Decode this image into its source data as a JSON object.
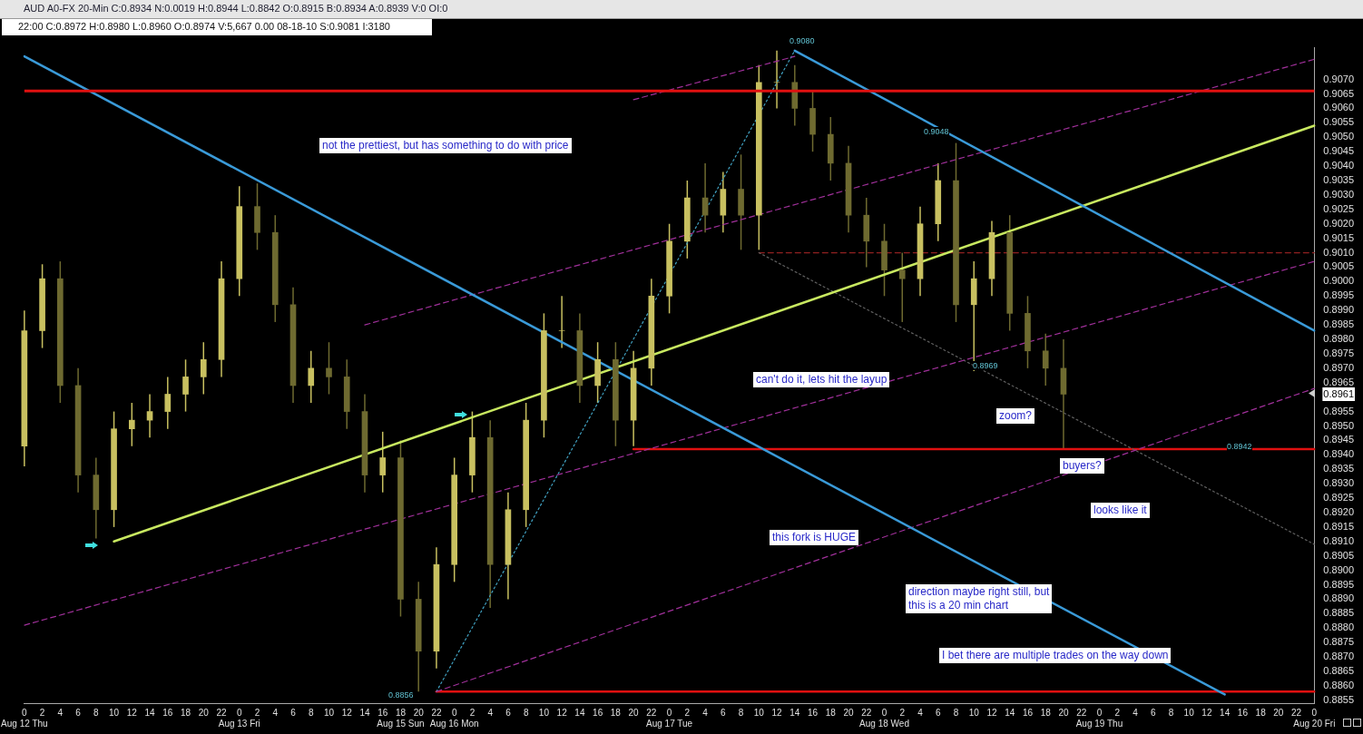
{
  "chart_data": {
    "type": "candlestick",
    "title": "AUD A0-FX 20-Min C:0.8934 N:0.0019 H:0.8944 L:0.8842 O:0.8915 B:0.8934 A:0.8939 V:0 OI:0",
    "subtitle": "22:00 C:0.8972 H:0.8980 L:0.8960 O:0.8974 V:5,667 0.00 08-18-10 S:0.9081 I:3180",
    "colors": [
      "#c8c060",
      "#c8c060",
      "#6e6a30",
      "#6e6a30",
      "#6e6a30",
      "#c8c060",
      "#c8c060",
      "#c8c060",
      "#c8c060",
      "#c8c060",
      "#c8c060",
      "#c8c060",
      "#c8c060",
      "#6e6a30",
      "#6e6a30",
      "#6e6a30",
      "#c8c060",
      "#6e6a30",
      "#6e6a30",
      "#6e6a30",
      "#c8c060",
      "#6e6a30",
      "#6e6a30",
      "#c8c060",
      "#c8c060",
      "#c8c060",
      "#6e6a30",
      "#c8c060",
      "#c8c060",
      "#c8c060",
      "#c8c060",
      "#6e6a30",
      "#c8c060",
      "#6e6a30",
      "#c8c060",
      "#c8c060",
      "#c8c060",
      "#c8c060",
      "#6e6a30",
      "#c8c060",
      "#6e6a30",
      "#c8c060",
      "#c8c060",
      "#6e6a30",
      "#6e6a30",
      "#6e6a30",
      "#6e6a30",
      "#6e6a30",
      "#6e6a30",
      "#6e6a30",
      "#c8c060",
      "#c8c060",
      "#6e6a30",
      "#c8c060",
      "#c8c060",
      "#6e6a30",
      "#6e6a30",
      "#6e6a30",
      "#6e6a30",
      null,
      null,
      null,
      null,
      null,
      null,
      null,
      null,
      null,
      null,
      null,
      null,
      null,
      null
    ],
    "categories": [
      "0\nAug 12 Thu",
      "2",
      "4",
      "6",
      "8",
      "10",
      "12",
      "14",
      "16",
      "18",
      "20",
      "22",
      "0\nAug 13 Fri",
      "2",
      "4",
      "6",
      "8",
      "10",
      "12",
      "14",
      "16",
      "18\nAug 15 Sun",
      "20",
      "22",
      "0\nAug 16 Mon",
      "2",
      "4",
      "6",
      "8",
      "10",
      "12",
      "14",
      "16",
      "18",
      "20",
      "22",
      "0\nAug 17 Tue",
      "2",
      "4",
      "6",
      "8",
      "10",
      "12",
      "14",
      "16",
      "18",
      "20",
      "22",
      "0\nAug 18 Wed",
      "2",
      "4",
      "6",
      "8",
      "10",
      "12",
      "14",
      "16",
      "18",
      "20",
      "22",
      "0\nAug 19 Thu",
      "2",
      "4",
      "6",
      "8",
      "10",
      "12",
      "14",
      "16",
      "18",
      "20",
      "22",
      "0\nAug 20 Fri"
    ],
    "ohlc": [
      [
        0.8943,
        0.899,
        0.8936,
        0.8983
      ],
      [
        0.8983,
        0.9006,
        0.8977,
        0.9001
      ],
      [
        0.9001,
        0.9007,
        0.8958,
        0.8964
      ],
      [
        0.8964,
        0.897,
        0.8927,
        0.8933
      ],
      [
        0.8933,
        0.8939,
        0.8911,
        0.8921
      ],
      [
        0.8921,
        0.8955,
        0.8915,
        0.8949
      ],
      [
        0.8949,
        0.8958,
        0.8943,
        0.8952
      ],
      [
        0.8952,
        0.8961,
        0.8946,
        0.8955
      ],
      [
        0.8955,
        0.8967,
        0.8949,
        0.8961
      ],
      [
        0.8961,
        0.8973,
        0.8955,
        0.8967
      ],
      [
        0.8967,
        0.8979,
        0.8961,
        0.8973
      ],
      [
        0.8973,
        0.9007,
        0.8967,
        0.9001
      ],
      [
        0.9001,
        0.9033,
        0.8995,
        0.9026
      ],
      [
        0.9026,
        0.9034,
        0.9011,
        0.9017
      ],
      [
        0.9017,
        0.9023,
        0.8986,
        0.8992
      ],
      [
        0.8992,
        0.8998,
        0.8958,
        0.8964
      ],
      [
        0.8964,
        0.8976,
        0.8958,
        0.897
      ],
      [
        0.897,
        0.8979,
        0.8961,
        0.8967
      ],
      [
        0.8967,
        0.8973,
        0.8949,
        0.8955
      ],
      [
        0.8955,
        0.8961,
        0.8927,
        0.8933
      ],
      [
        0.8933,
        0.8948,
        0.8927,
        0.8939
      ],
      [
        0.8939,
        0.8945,
        0.8884,
        0.889
      ],
      [
        0.889,
        0.8896,
        0.8858,
        0.8872
      ],
      [
        0.8872,
        0.8908,
        0.8866,
        0.8902
      ],
      [
        0.8902,
        0.8939,
        0.8896,
        0.8933
      ],
      [
        0.8933,
        0.8955,
        0.8927,
        0.8946
      ],
      [
        0.8946,
        0.8952,
        0.8887,
        0.8902
      ],
      [
        0.8902,
        0.8927,
        0.889,
        0.8921
      ],
      [
        0.8921,
        0.8958,
        0.8915,
        0.8952
      ],
      [
        0.8952,
        0.8989,
        0.8946,
        0.8983
      ],
      [
        0.8983,
        0.8995,
        0.8977,
        0.8983
      ],
      [
        0.8983,
        0.8989,
        0.8958,
        0.8964
      ],
      [
        0.8964,
        0.8979,
        0.8958,
        0.8973
      ],
      [
        0.8973,
        0.8979,
        0.8943,
        0.8952
      ],
      [
        0.8952,
        0.8976,
        0.8943,
        0.897
      ],
      [
        0.897,
        0.9001,
        0.8964,
        0.8995
      ],
      [
        0.8995,
        0.902,
        0.8989,
        0.9014
      ],
      [
        0.9014,
        0.9035,
        0.9008,
        0.9029
      ],
      [
        0.9029,
        0.9041,
        0.9017,
        0.9023
      ],
      [
        0.9023,
        0.9038,
        0.9017,
        0.9032
      ],
      [
        0.9032,
        0.9044,
        0.9011,
        0.9023
      ],
      [
        0.9023,
        0.9075,
        0.9011,
        0.9069
      ],
      [
        0.9069,
        0.908,
        0.906,
        0.9069
      ],
      [
        0.9069,
        0.9075,
        0.9054,
        0.906
      ],
      [
        0.906,
        0.9066,
        0.9045,
        0.9051
      ],
      [
        0.9051,
        0.9057,
        0.9035,
        0.9041
      ],
      [
        0.9041,
        0.9047,
        0.9017,
        0.9023
      ],
      [
        0.9023,
        0.9029,
        0.9005,
        0.9014
      ],
      [
        0.9014,
        0.902,
        0.8995,
        0.9004
      ],
      [
        0.9004,
        0.901,
        0.8986,
        0.9001
      ],
      [
        0.9001,
        0.9026,
        0.8995,
        0.902
      ],
      [
        0.902,
        0.9041,
        0.9014,
        0.9035
      ],
      [
        0.9035,
        0.9048,
        0.8986,
        0.8992
      ],
      [
        0.8992,
        0.9007,
        0.8969,
        0.9001
      ],
      [
        0.9001,
        0.9021,
        0.8995,
        0.9017
      ],
      [
        0.9017,
        0.9023,
        0.8983,
        0.8989
      ],
      [
        0.8989,
        0.8995,
        0.897,
        0.8976
      ],
      [
        0.8976,
        0.8982,
        0.8964,
        0.897
      ],
      [
        0.897,
        0.898,
        0.8942,
        0.8961
      ],
      null,
      null,
      null,
      null,
      null,
      null,
      null,
      null,
      null,
      null,
      null,
      null,
      null,
      null
    ],
    "series": [
      {
        "type": "line",
        "color": "#3a9ad8",
        "line_style": "solid",
        "values": [
          0.9078,
          null,
          null,
          null,
          null,
          null,
          null,
          null,
          null,
          null,
          null,
          null,
          null,
          null,
          null,
          null,
          null,
          null,
          null,
          null,
          null,
          null,
          null,
          null,
          null,
          null,
          null,
          null,
          null,
          null,
          null,
          null,
          null,
          null,
          null,
          null,
          null,
          null,
          null,
          null,
          null,
          null,
          null,
          null,
          null,
          null,
          null,
          null,
          null,
          null,
          null,
          null,
          null,
          null,
          null,
          null,
          null,
          null,
          null,
          null,
          null,
          null,
          null,
          null,
          null,
          null,
          null,
          0.8857,
          null,
          null,
          null,
          null,
          null
        ]
      },
      {
        "type": "line",
        "color": "#3a9ad8",
        "line_style": "solid",
        "values": [
          null,
          null,
          null,
          null,
          null,
          null,
          null,
          null,
          null,
          null,
          null,
          null,
          null,
          null,
          null,
          null,
          null,
          null,
          null,
          null,
          null,
          null,
          null,
          null,
          null,
          null,
          null,
          null,
          null,
          null,
          null,
          null,
          null,
          null,
          null,
          null,
          null,
          null,
          null,
          null,
          null,
          null,
          null,
          0.908,
          null,
          null,
          null,
          null,
          null,
          null,
          null,
          null,
          null,
          null,
          null,
          null,
          null,
          null,
          null,
          null,
          null,
          null,
          null,
          null,
          null,
          null,
          null,
          null,
          null,
          null,
          null,
          null,
          0.8983
        ]
      },
      {
        "type": "line",
        "color": "#c8e860",
        "line_style": "solid",
        "values": [
          null,
          null,
          null,
          null,
          null,
          0.891,
          null,
          null,
          null,
          null,
          null,
          null,
          null,
          null,
          null,
          null,
          null,
          null,
          null,
          null,
          null,
          null,
          null,
          null,
          null,
          null,
          null,
          null,
          null,
          null,
          null,
          null,
          null,
          null,
          null,
          null,
          null,
          null,
          null,
          null,
          null,
          null,
          null,
          null,
          null,
          null,
          null,
          null,
          null,
          null,
          null,
          null,
          null,
          null,
          null,
          null,
          null,
          null,
          null,
          null,
          null,
          null,
          null,
          null,
          null,
          null,
          null,
          null,
          null,
          null,
          null,
          null,
          0.9054
        ]
      },
      {
        "type": "line",
        "color": "#a0309a",
        "line_style": "dashed",
        "values": [
          null,
          null,
          null,
          null,
          null,
          null,
          null,
          null,
          null,
          null,
          null,
          null,
          null,
          null,
          null,
          null,
          null,
          null,
          null,
          null,
          null,
          null,
          null,
          null,
          null,
          null,
          null,
          null,
          null,
          null,
          null,
          null,
          null,
          null,
          0.9063,
          null,
          null,
          null,
          null,
          null,
          null,
          null,
          null,
          0.9078,
          null,
          null,
          null,
          null,
          null,
          null,
          null,
          null,
          null,
          null,
          null,
          null,
          null,
          null,
          null,
          null,
          null,
          null,
          null,
          null,
          null,
          null,
          null,
          null,
          null,
          null,
          null,
          null,
          null
        ]
      },
      {
        "type": "line",
        "color": "#a0309a",
        "line_style": "dashed",
        "values": [
          null,
          null,
          null,
          null,
          null,
          null,
          null,
          null,
          null,
          null,
          null,
          null,
          null,
          null,
          null,
          null,
          null,
          null,
          null,
          0.8985,
          null,
          null,
          null,
          null,
          null,
          null,
          null,
          null,
          null,
          null,
          null,
          null,
          null,
          null,
          null,
          null,
          null,
          null,
          null,
          null,
          null,
          null,
          null,
          null,
          null,
          null,
          null,
          null,
          null,
          null,
          null,
          null,
          null,
          null,
          null,
          null,
          null,
          null,
          null,
          null,
          null,
          null,
          null,
          null,
          null,
          null,
          null,
          null,
          null,
          null,
          null,
          null,
          0.9077
        ]
      },
      {
        "type": "line",
        "color": "#a0309a",
        "line_style": "dashed",
        "values": [
          0.8881,
          null,
          null,
          null,
          null,
          null,
          null,
          null,
          null,
          null,
          null,
          null,
          null,
          null,
          null,
          null,
          null,
          null,
          null,
          null,
          null,
          null,
          null,
          null,
          null,
          null,
          null,
          null,
          null,
          null,
          null,
          null,
          null,
          null,
          null,
          null,
          null,
          null,
          null,
          null,
          null,
          null,
          null,
          null,
          null,
          null,
          null,
          null,
          null,
          null,
          null,
          null,
          null,
          null,
          null,
          null,
          null,
          null,
          null,
          null,
          null,
          null,
          null,
          null,
          null,
          null,
          null,
          null,
          null,
          null,
          null,
          null,
          0.9007
        ]
      },
      {
        "type": "line",
        "color": "#a0309a",
        "line_style": "dashed",
        "values": [
          null,
          null,
          null,
          null,
          null,
          null,
          null,
          null,
          null,
          null,
          null,
          null,
          null,
          null,
          null,
          null,
          null,
          null,
          null,
          null,
          null,
          null,
          null,
          0.8858,
          null,
          null,
          null,
          null,
          null,
          null,
          null,
          null,
          null,
          null,
          null,
          null,
          null,
          null,
          null,
          null,
          null,
          null,
          null,
          null,
          null,
          null,
          null,
          null,
          null,
          null,
          null,
          null,
          null,
          null,
          null,
          null,
          null,
          null,
          null,
          null,
          null,
          null,
          null,
          null,
          null,
          null,
          null,
          null,
          null,
          null,
          null,
          null,
          0.8963
        ]
      },
      {
        "type": "line",
        "color": "#40a0c0",
        "line_style": "dotted",
        "values": [
          null,
          null,
          null,
          null,
          null,
          null,
          null,
          null,
          null,
          null,
          null,
          null,
          null,
          null,
          null,
          null,
          null,
          null,
          null,
          null,
          null,
          null,
          null,
          0.8858,
          null,
          null,
          null,
          null,
          null,
          null,
          null,
          null,
          null,
          null,
          null,
          null,
          null,
          null,
          null,
          null,
          null,
          null,
          null,
          0.908,
          null,
          null,
          null,
          null,
          null,
          null,
          null,
          null,
          null,
          null,
          null,
          null,
          null,
          null,
          null,
          null,
          null,
          null,
          null,
          null,
          null,
          null,
          null,
          null,
          null,
          null,
          null,
          null,
          null
        ]
      },
      {
        "type": "line",
        "color": "#606060",
        "line_style": "dotted",
        "values": [
          null,
          null,
          null,
          null,
          null,
          null,
          null,
          null,
          null,
          null,
          null,
          null,
          null,
          null,
          null,
          null,
          null,
          null,
          null,
          null,
          null,
          null,
          null,
          null,
          null,
          null,
          null,
          null,
          null,
          null,
          null,
          null,
          null,
          null,
          null,
          null,
          null,
          null,
          null,
          null,
          null,
          0.901,
          null,
          null,
          null,
          null,
          null,
          null,
          null,
          null,
          null,
          null,
          null,
          null,
          null,
          null,
          null,
          null,
          null,
          null,
          null,
          null,
          null,
          null,
          null,
          null,
          null,
          null,
          null,
          null,
          null,
          null,
          0.8909
        ]
      },
      {
        "type": "line",
        "color": "#902020",
        "line_style": "dashed",
        "values": [
          null,
          null,
          null,
          null,
          null,
          null,
          null,
          null,
          null,
          null,
          null,
          null,
          null,
          null,
          null,
          null,
          null,
          null,
          null,
          null,
          null,
          null,
          null,
          null,
          null,
          null,
          null,
          null,
          null,
          null,
          null,
          null,
          null,
          null,
          null,
          null,
          null,
          null,
          null,
          null,
          null,
          0.901,
          null,
          null,
          null,
          null,
          null,
          null,
          null,
          null,
          null,
          null,
          null,
          null,
          null,
          null,
          null,
          null,
          null,
          null,
          null,
          null,
          null,
          null,
          null,
          null,
          null,
          null,
          null,
          null,
          null,
          null,
          0.901
        ]
      },
      {
        "type": "line",
        "color": "#e01010",
        "line_style": "solid",
        "values": [
          null,
          null,
          null,
          null,
          null,
          null,
          null,
          null,
          null,
          null,
          null,
          null,
          null,
          null,
          null,
          null,
          null,
          null,
          null,
          null,
          null,
          null,
          null,
          null,
          null,
          null,
          null,
          null,
          null,
          null,
          null,
          null,
          null,
          null,
          0.8942,
          null,
          null,
          null,
          null,
          null,
          null,
          null,
          null,
          null,
          null,
          null,
          null,
          null,
          null,
          null,
          null,
          null,
          null,
          null,
          null,
          null,
          null,
          null,
          null,
          null,
          null,
          null,
          null,
          null,
          null,
          null,
          null,
          null,
          null,
          null,
          null,
          null,
          0.8942
        ]
      },
      {
        "type": "line",
        "color": "#e01010",
        "line_style": "solid",
        "values": [
          null,
          null,
          null,
          null,
          null,
          null,
          null,
          null,
          null,
          null,
          null,
          null,
          null,
          null,
          null,
          null,
          null,
          null,
          null,
          null,
          null,
          null,
          null,
          0.8858,
          null,
          null,
          null,
          null,
          null,
          null,
          null,
          null,
          null,
          null,
          null,
          null,
          null,
          null,
          null,
          null,
          null,
          null,
          null,
          null,
          null,
          null,
          null,
          null,
          null,
          null,
          null,
          null,
          null,
          null,
          null,
          null,
          null,
          null,
          null,
          null,
          null,
          null,
          null,
          null,
          null,
          null,
          null,
          null,
          null,
          null,
          null,
          null,
          0.8858
        ]
      }
    ],
    "ref_lines": [
      {
        "axis": "y",
        "value": 0.9066,
        "color": "#e01010"
      }
    ],
    "annotations": [
      "not the prettiest, but has something to do with price",
      "can't do it, lets hit the layup",
      "zoom?",
      "buyers?",
      "looks like it",
      "this fork is HUGE",
      "direction maybe right still, but\nthis is a 20 min chart",
      "I bet there are multiple trades on the way down",
      "0.9080",
      "0.9048",
      "0.8969",
      "0.8856",
      "0.8942"
    ],
    "ylim": [
      0.8854,
      0.9081
    ],
    "yticks": [
      {
        "value": 0.8855,
        "label": "0.8855"
      },
      {
        "value": 0.886,
        "label": "0.8860"
      },
      {
        "value": 0.8865,
        "label": "0.8865"
      },
      {
        "value": 0.887,
        "label": "0.8870"
      },
      {
        "value": 0.8875,
        "label": "0.8875"
      },
      {
        "value": 0.888,
        "label": "0.8880"
      },
      {
        "value": 0.8885,
        "label": "0.8885"
      },
      {
        "value": 0.889,
        "label": "0.8890"
      },
      {
        "value": 0.8895,
        "label": "0.8895"
      },
      {
        "value": 0.89,
        "label": "0.8900"
      },
      {
        "value": 0.8905,
        "label": "0.8905"
      },
      {
        "value": 0.891,
        "label": "0.8910"
      },
      {
        "value": 0.8915,
        "label": "0.8915"
      },
      {
        "value": 0.892,
        "label": "0.8920"
      },
      {
        "value": 0.8925,
        "label": "0.8925"
      },
      {
        "value": 0.893,
        "label": "0.8930"
      },
      {
        "value": 0.8935,
        "label": "0.8935"
      },
      {
        "value": 0.894,
        "label": "0.8940"
      },
      {
        "value": 0.8945,
        "label": "0.8945"
      },
      {
        "value": 0.895,
        "label": "0.8950"
      },
      {
        "value": 0.8955,
        "label": "0.8955"
      },
      {
        "value": 0.8961,
        "label": "0.8961"
      },
      {
        "value": 0.8965,
        "label": "0.8965"
      },
      {
        "value": 0.897,
        "label": "0.8970"
      },
      {
        "value": 0.8975,
        "label": "0.8975"
      },
      {
        "value": 0.898,
        "label": "0.8980"
      },
      {
        "value": 0.8985,
        "label": "0.8985"
      },
      {
        "value": 0.899,
        "label": "0.8990"
      },
      {
        "value": 0.8995,
        "label": "0.8995"
      },
      {
        "value": 0.9,
        "label": "0.9000"
      },
      {
        "value": 0.9005,
        "label": "0.9005"
      },
      {
        "value": 0.901,
        "label": "0.9010"
      },
      {
        "value": 0.9015,
        "label": "0.9015"
      },
      {
        "value": 0.902,
        "label": "0.9020"
      },
      {
        "value": 0.9025,
        "label": "0.9025"
      },
      {
        "value": 0.903,
        "label": "0.9030"
      },
      {
        "value": 0.9035,
        "label": "0.9035"
      },
      {
        "value": 0.904,
        "label": "0.9040"
      },
      {
        "value": 0.9045,
        "label": "0.9045"
      },
      {
        "value": 0.905,
        "label": "0.9050"
      },
      {
        "value": 0.9055,
        "label": "0.9055"
      },
      {
        "value": 0.906,
        "label": "0.9060"
      },
      {
        "value": 0.9065,
        "label": "0.9065"
      },
      {
        "value": 0.907,
        "label": "0.9070"
      }
    ],
    "grid": false,
    "legend": false
  }
}
